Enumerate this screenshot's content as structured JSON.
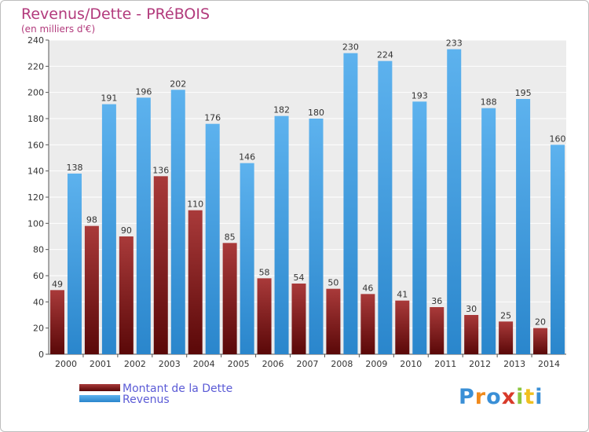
{
  "chart_data": {
    "type": "bar",
    "title": "Revenus/Dette - PRéBOIS",
    "subtitle": "(en milliers d'€)",
    "categories": [
      "2000",
      "2001",
      "2002",
      "2003",
      "2004",
      "2005",
      "2006",
      "2007",
      "2008",
      "2009",
      "2010",
      "2011",
      "2012",
      "2013",
      "2014"
    ],
    "series": [
      {
        "name": "Montant de la Dette",
        "color": "#8a1a1a",
        "values": [
          49,
          98,
          90,
          136,
          110,
          85,
          58,
          54,
          50,
          46,
          41,
          36,
          30,
          25,
          20
        ]
      },
      {
        "name": "Revenus",
        "color": "#3f9de0",
        "values": [
          138,
          191,
          196,
          202,
          176,
          146,
          182,
          180,
          230,
          224,
          193,
          233,
          188,
          195,
          160
        ]
      }
    ],
    "ylim": [
      0,
      240
    ],
    "yticks": [
      0,
      20,
      40,
      60,
      80,
      100,
      120,
      140,
      160,
      180,
      200,
      220,
      240
    ],
    "grid": true,
    "legend_position": "bottom-left"
  },
  "brand": {
    "text": "Proxiti",
    "letters": [
      "P",
      "r",
      "o",
      "x",
      "i",
      "t",
      "i"
    ],
    "colors": [
      "#3a8fd6",
      "#f08a1c",
      "#3a8fd6",
      "#d83a2a",
      "#8cc63f",
      "#f0c020",
      "#3a8fd6"
    ]
  }
}
